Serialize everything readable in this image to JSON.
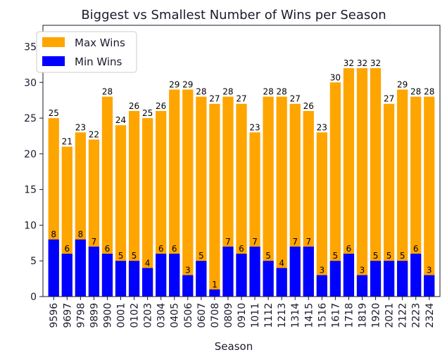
{
  "chart_data": {
    "type": "bar",
    "stacking": "overlay",
    "title": "Biggest vs Smallest Number of Wins per Season",
    "xlabel": "Season",
    "ylabel": "",
    "ylim": [
      0,
      38
    ],
    "yticks": [
      0,
      5,
      10,
      15,
      20,
      25,
      30,
      35
    ],
    "legend_position": "top-left",
    "categories": [
      "9596",
      "9697",
      "9798",
      "9899",
      "9900",
      "0001",
      "0102",
      "0203",
      "0304",
      "0405",
      "0506",
      "0607",
      "0708",
      "0809",
      "0910",
      "1011",
      "1112",
      "1213",
      "1314",
      "1415",
      "1516",
      "1617",
      "1718",
      "1819",
      "1920",
      "2021",
      "2122",
      "2223",
      "2324"
    ],
    "series": [
      {
        "name": "Max Wins",
        "color": "#FFA500",
        "values": [
          25,
          21,
          23,
          22,
          28,
          24,
          26,
          25,
          26,
          29,
          29,
          28,
          27,
          28,
          27,
          23,
          28,
          28,
          27,
          26,
          23,
          30,
          32,
          32,
          32,
          27,
          29,
          28,
          28
        ]
      },
      {
        "name": "Min Wins",
        "color": "#0000FF",
        "values": [
          8,
          6,
          8,
          7,
          6,
          5,
          5,
          4,
          6,
          6,
          3,
          5,
          1,
          7,
          6,
          7,
          5,
          4,
          7,
          7,
          3,
          5,
          6,
          3,
          5,
          5,
          5,
          6,
          3
        ]
      }
    ]
  }
}
